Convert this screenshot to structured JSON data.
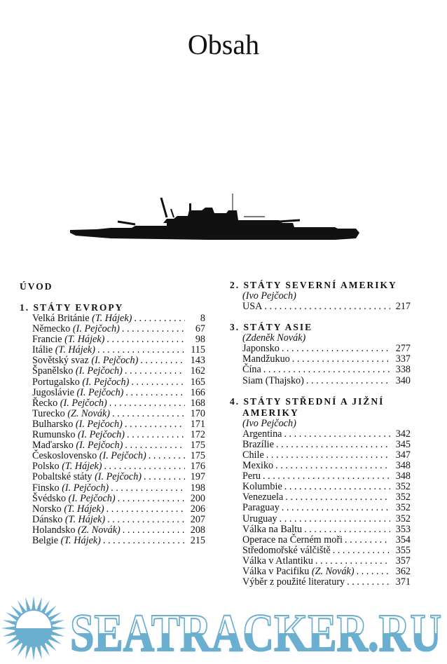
{
  "title": "Obsah",
  "left_column": {
    "intro": "ÚVOD",
    "section1": {
      "heading": "1. STÁTY EVROPY",
      "entries": [
        {
          "name": "Velká Británie",
          "author": "(T. Hájek)",
          "page": "8"
        },
        {
          "name": "Německo",
          "author": "(I. Pejčoch)",
          "page": "67"
        },
        {
          "name": "Francie",
          "author": "(T. Hájek)",
          "page": "98"
        },
        {
          "name": "Itálie",
          "author": "(T. Hájek)",
          "page": "115"
        },
        {
          "name": "Sovětský svaz",
          "author": "(I. Pejčoch)",
          "page": "143"
        },
        {
          "name": "Španělsko",
          "author": "(I. Pejčoch)",
          "page": "162"
        },
        {
          "name": "Portugalsko",
          "author": "(I. Pejčoch)",
          "page": "165"
        },
        {
          "name": "Jugoslávie",
          "author": "(I. Pejčoch)",
          "page": "166"
        },
        {
          "name": "Řecko",
          "author": "(I. Pejčoch)",
          "page": "168"
        },
        {
          "name": "Turecko",
          "author": "(Z. Novák)",
          "page": "170"
        },
        {
          "name": "Bulharsko",
          "author": "(I. Pejčoch)",
          "page": "171"
        },
        {
          "name": "Rumunsko",
          "author": "(I. Pejčoch)",
          "page": "172"
        },
        {
          "name": "Maďarsko",
          "author": "(I. Pejčoch)",
          "page": "175"
        },
        {
          "name": "Československo",
          "author": "(I. Pejčoch)",
          "page": "175"
        },
        {
          "name": "Polsko",
          "author": "(T. Hájek)",
          "page": "176"
        },
        {
          "name": "Pobaltské státy",
          "author": "(I. Pejčoch)",
          "page": "197"
        },
        {
          "name": "Finsko",
          "author": "(I. Pejčoch)",
          "page": "198"
        },
        {
          "name": "Švédsko",
          "author": "(I. Pejčoch)",
          "page": "200"
        },
        {
          "name": "Norsko",
          "author": "(T. Hájek)",
          "page": "206"
        },
        {
          "name": "Dánsko",
          "author": "(T. Hájek)",
          "page": "207"
        },
        {
          "name": "Holandsko",
          "author": "(Z. Novák)",
          "page": "208"
        },
        {
          "name": "Belgie",
          "author": "(T. Hájek)",
          "page": "215"
        }
      ]
    }
  },
  "right_column": {
    "section2": {
      "heading": "2. STÁTY SEVERNÍ AMERIKY",
      "author": "(Ivo Pejčoch)",
      "entries": [
        {
          "name": "USA",
          "author": "",
          "page": "217"
        }
      ]
    },
    "section3": {
      "heading": "3. STÁTY ASIE",
      "author": "(Zdeněk Novák)",
      "entries": [
        {
          "name": "Japonsko",
          "author": "",
          "page": "277"
        },
        {
          "name": "Mandžukuo",
          "author": "",
          "page": "337"
        },
        {
          "name": "Čína",
          "author": "",
          "page": "338"
        },
        {
          "name": "Siam (Thajsko)",
          "author": "",
          "page": "340"
        }
      ]
    },
    "section4": {
      "heading_line1": "4. STÁTY STŘEDNÍ A JIŽNÍ",
      "heading_line2": "AMERIKY",
      "author": "(Ivo Pejčoch)",
      "entries": [
        {
          "name": "Argentina",
          "author": "",
          "page": "342"
        },
        {
          "name": "Brazílie",
          "author": "",
          "page": "345"
        },
        {
          "name": "Chile",
          "author": "",
          "page": "347"
        },
        {
          "name": "Mexiko",
          "author": "",
          "page": "348"
        },
        {
          "name": "Peru",
          "author": "",
          "page": "348"
        },
        {
          "name": "Kolumbie",
          "author": "",
          "page": "352"
        },
        {
          "name": "Venezuela",
          "author": "",
          "page": "352"
        },
        {
          "name": "Paraguay",
          "author": "",
          "page": "352"
        },
        {
          "name": "Uruguay",
          "author": "",
          "page": "352"
        },
        {
          "name": "Válka na Baltu",
          "author": "",
          "page": "353"
        },
        {
          "name": "Operace na Černém moři",
          "author": "",
          "page": "354"
        },
        {
          "name": "Středomořské válčiště",
          "author": "",
          "page": "355"
        },
        {
          "name": "Válka v Atlantiku",
          "author": "",
          "page": "357"
        },
        {
          "name": "Válka v Pacifiku",
          "author": "(Z. Novák)",
          "page": "362"
        },
        {
          "name": "Výběr z použité literatury",
          "author": "",
          "page": "371"
        }
      ]
    }
  },
  "watermark": {
    "text": "SEATRACKER.RU",
    "color": "#6aaed0"
  }
}
